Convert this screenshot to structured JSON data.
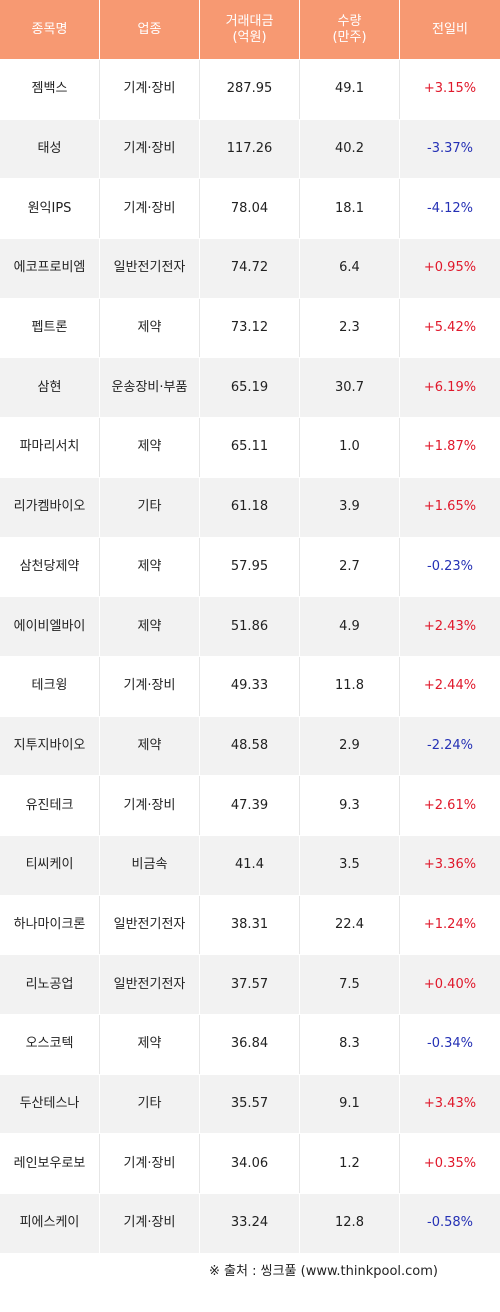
{
  "colors": {
    "header_bg": "#f79972",
    "up": "#e0182b",
    "down": "#2531b5",
    "row_alt": "#f2f2f2"
  },
  "header": {
    "name": "종목명",
    "sector": "업종",
    "amount": "거래대금\n(억원)",
    "volume": "수량\n(만주)",
    "change": "전일비"
  },
  "rows": [
    {
      "name": "젬백스",
      "sector": "기계·장비",
      "amount": "287.95",
      "volume": "49.1",
      "change": "+3.15%",
      "dir": "up"
    },
    {
      "name": "태성",
      "sector": "기계·장비",
      "amount": "117.26",
      "volume": "40.2",
      "change": "-3.37%",
      "dir": "down"
    },
    {
      "name": "원익IPS",
      "sector": "기계·장비",
      "amount": "78.04",
      "volume": "18.1",
      "change": "-4.12%",
      "dir": "down"
    },
    {
      "name": "에코프로비엠",
      "sector": "일반전기전자",
      "amount": "74.72",
      "volume": "6.4",
      "change": "+0.95%",
      "dir": "up"
    },
    {
      "name": "펩트론",
      "sector": "제약",
      "amount": "73.12",
      "volume": "2.3",
      "change": "+5.42%",
      "dir": "up"
    },
    {
      "name": "삼현",
      "sector": "운송장비·부품",
      "amount": "65.19",
      "volume": "30.7",
      "change": "+6.19%",
      "dir": "up"
    },
    {
      "name": "파마리서치",
      "sector": "제약",
      "amount": "65.11",
      "volume": "1.0",
      "change": "+1.87%",
      "dir": "up"
    },
    {
      "name": "리가켐바이오",
      "sector": "기타",
      "amount": "61.18",
      "volume": "3.9",
      "change": "+1.65%",
      "dir": "up"
    },
    {
      "name": "삼천당제약",
      "sector": "제약",
      "amount": "57.95",
      "volume": "2.7",
      "change": "-0.23%",
      "dir": "down"
    },
    {
      "name": "에이비엘바이",
      "sector": "제약",
      "amount": "51.86",
      "volume": "4.9",
      "change": "+2.43%",
      "dir": "up"
    },
    {
      "name": "테크윙",
      "sector": "기계·장비",
      "amount": "49.33",
      "volume": "11.8",
      "change": "+2.44%",
      "dir": "up"
    },
    {
      "name": "지투지바이오",
      "sector": "제약",
      "amount": "48.58",
      "volume": "2.9",
      "change": "-2.24%",
      "dir": "down"
    },
    {
      "name": "유진테크",
      "sector": "기계·장비",
      "amount": "47.39",
      "volume": "9.3",
      "change": "+2.61%",
      "dir": "up"
    },
    {
      "name": "티씨케이",
      "sector": "비금속",
      "amount": "41.4",
      "volume": "3.5",
      "change": "+3.36%",
      "dir": "up"
    },
    {
      "name": "하나마이크론",
      "sector": "일반전기전자",
      "amount": "38.31",
      "volume": "22.4",
      "change": "+1.24%",
      "dir": "up"
    },
    {
      "name": "리노공업",
      "sector": "일반전기전자",
      "amount": "37.57",
      "volume": "7.5",
      "change": "+0.40%",
      "dir": "up"
    },
    {
      "name": "오스코텍",
      "sector": "제약",
      "amount": "36.84",
      "volume": "8.3",
      "change": "-0.34%",
      "dir": "down"
    },
    {
      "name": "두산테스나",
      "sector": "기타",
      "amount": "35.57",
      "volume": "9.1",
      "change": "+3.43%",
      "dir": "up"
    },
    {
      "name": "레인보우로보",
      "sector": "기계·장비",
      "amount": "34.06",
      "volume": "1.2",
      "change": "+0.35%",
      "dir": "up"
    },
    {
      "name": "피에스케이",
      "sector": "기계·장비",
      "amount": "33.24",
      "volume": "12.8",
      "change": "-0.58%",
      "dir": "down"
    }
  ],
  "source": "※ 출처 : 씽크풀 (www.thinkpool.com)"
}
